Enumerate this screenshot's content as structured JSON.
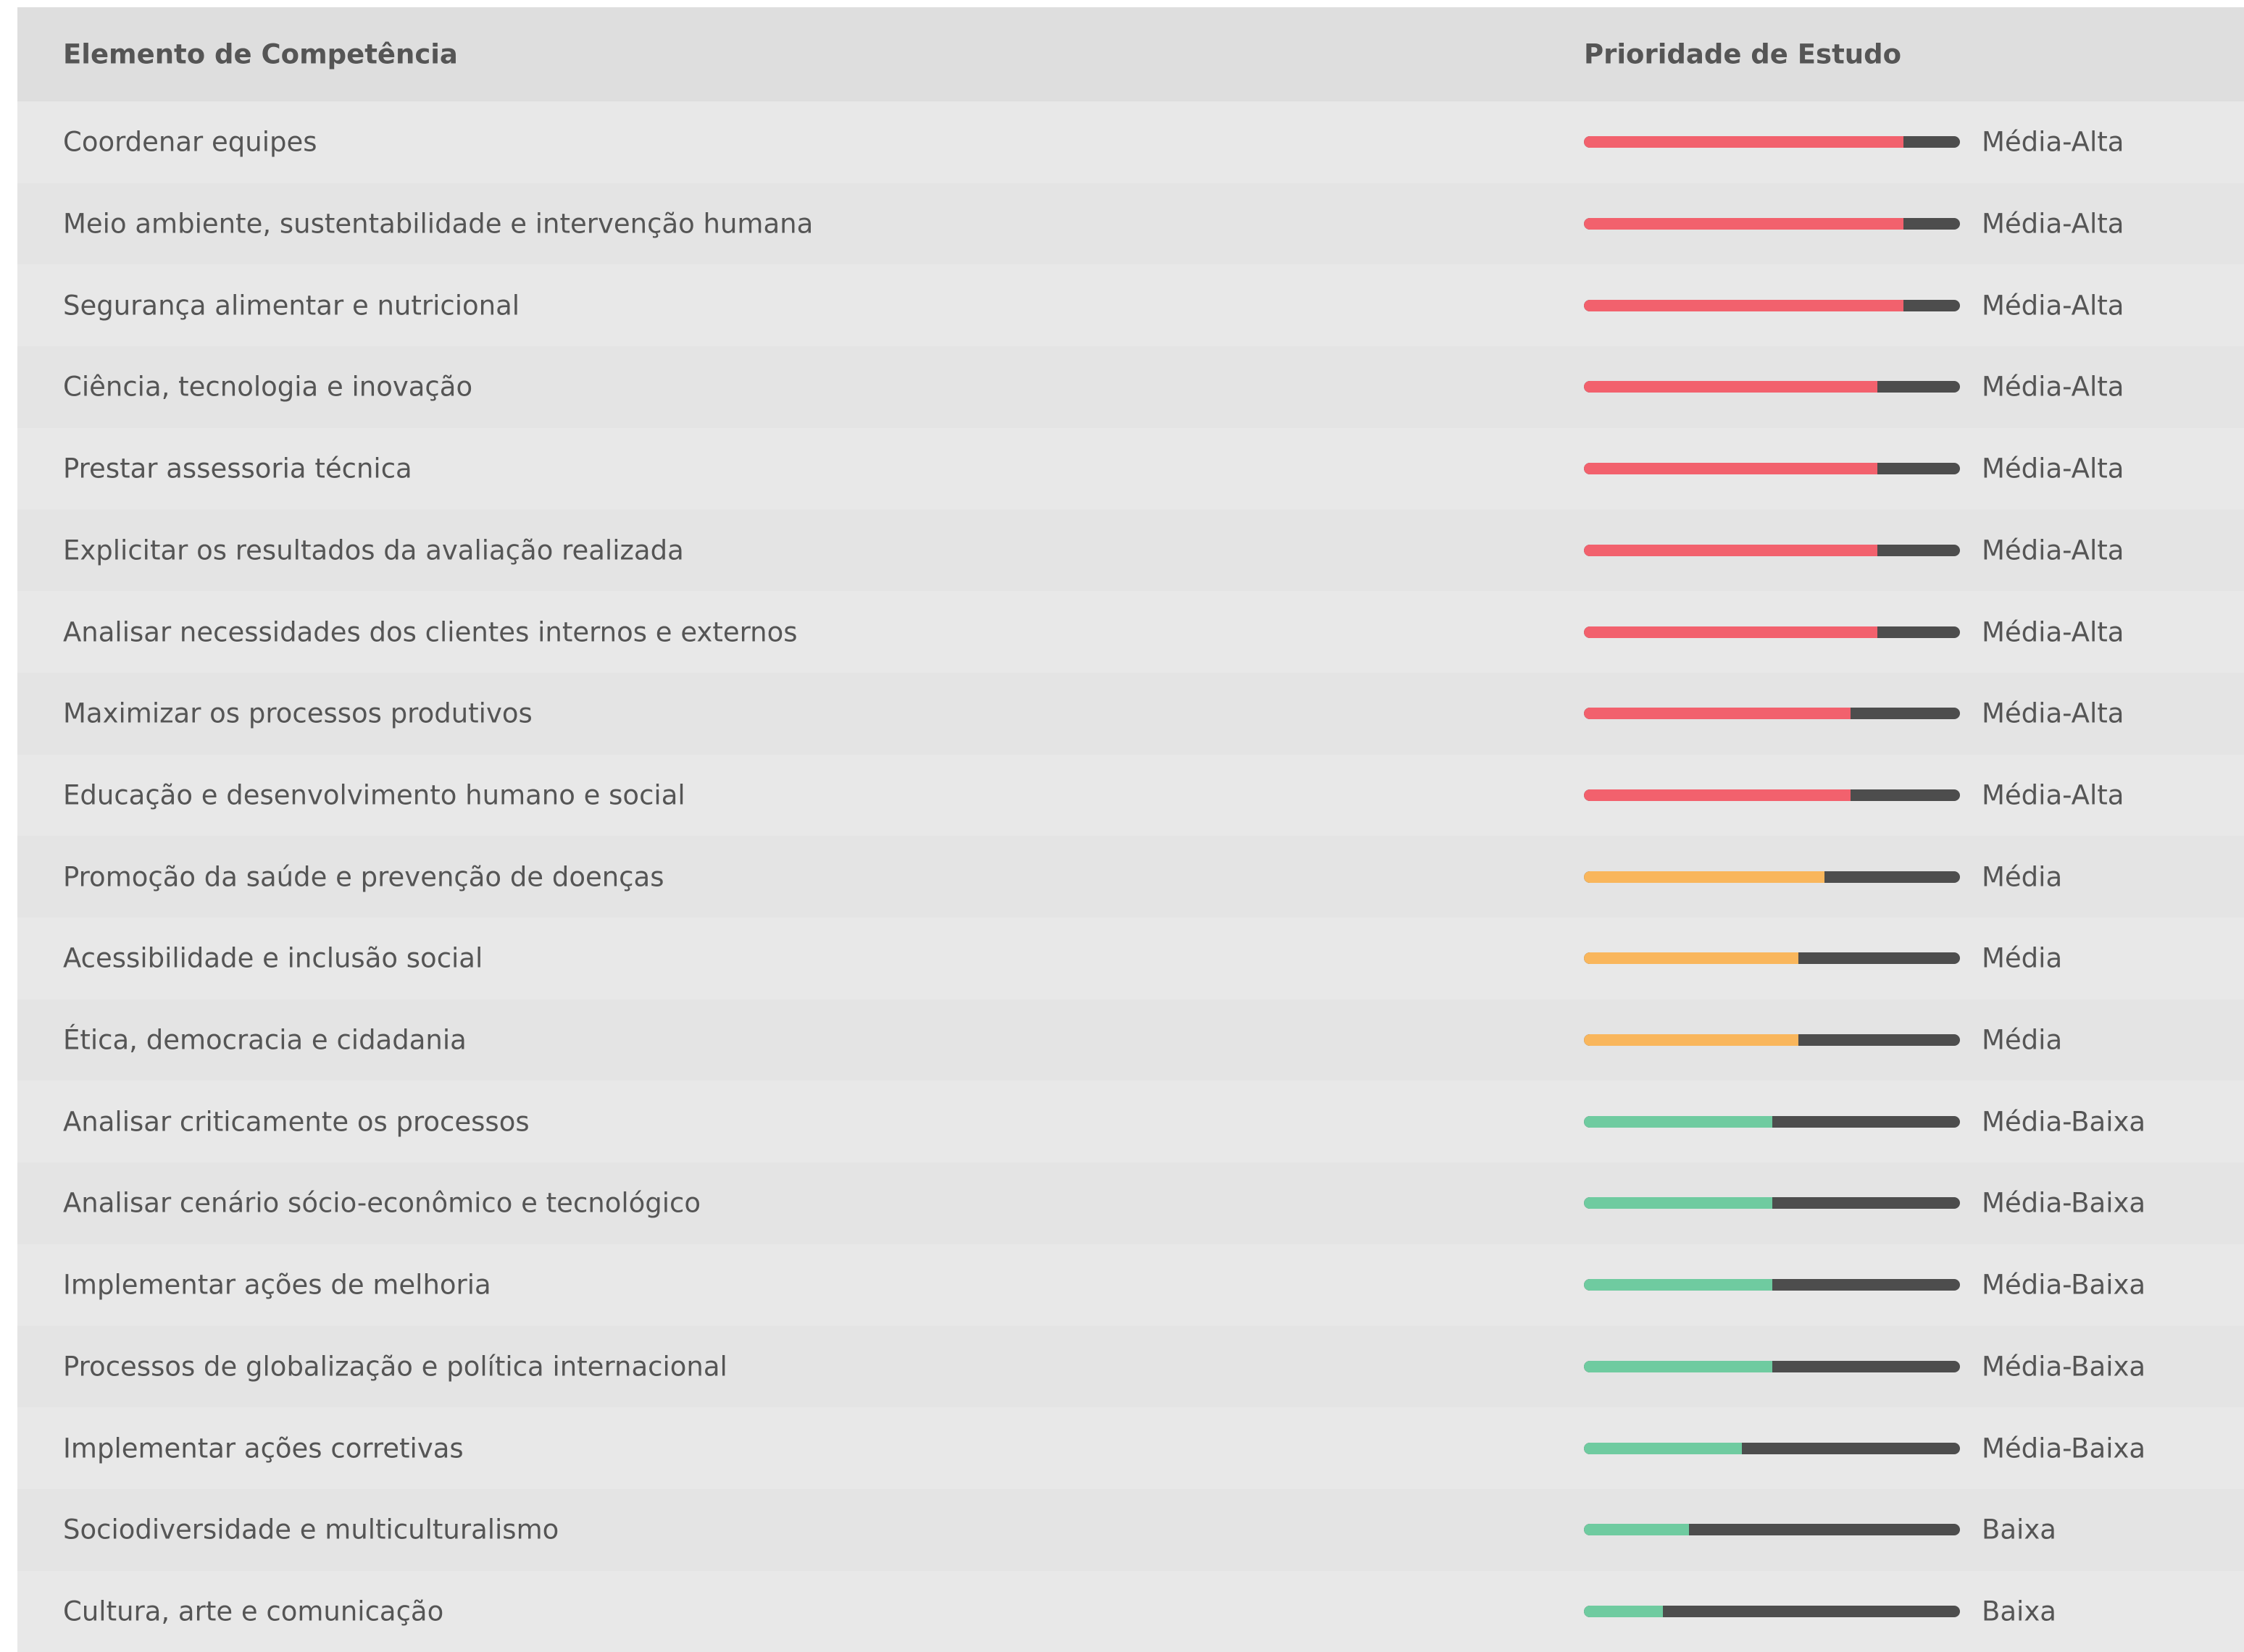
{
  "header": {
    "element": "Elemento de Competência",
    "priority": "Prioridade de Estudo"
  },
  "scale_max": 100,
  "rows": [
    {
      "element": "Coordenar equipes",
      "priority": "Média-Alta",
      "level": 85,
      "color": "#f2616d"
    },
    {
      "element": "Meio ambiente, sustentabilidade e intervenção humana",
      "priority": "Média-Alta",
      "level": 85,
      "color": "#f2616d"
    },
    {
      "element": "Segurança alimentar e nutricional",
      "priority": "Média-Alta",
      "level": 85,
      "color": "#f2616d"
    },
    {
      "element": "Ciência, tecnologia e inovação",
      "priority": "Média-Alta",
      "level": 78,
      "color": "#f2616d"
    },
    {
      "element": "Prestar assessoria técnica",
      "priority": "Média-Alta",
      "level": 78,
      "color": "#f2616d"
    },
    {
      "element": "Explicitar os resultados da avaliação realizada",
      "priority": "Média-Alta",
      "level": 78,
      "color": "#f2616d"
    },
    {
      "element": "Analisar necessidades dos clientes internos e externos",
      "priority": "Média-Alta",
      "level": 78,
      "color": "#f2616d"
    },
    {
      "element": "Maximizar os processos produtivos",
      "priority": "Média-Alta",
      "level": 71,
      "color": "#f2616d"
    },
    {
      "element": "Educação e desenvolvimento humano e social",
      "priority": "Média-Alta",
      "level": 71,
      "color": "#f2616d"
    },
    {
      "element": "Promoção da saúde e prevenção de doenças",
      "priority": "Média",
      "level": 64,
      "color": "#f9b65c"
    },
    {
      "element": "Acessibilidade e inclusão social",
      "priority": "Média",
      "level": 57,
      "color": "#f9b65c"
    },
    {
      "element": "Ética, democracia e cidadania",
      "priority": "Média",
      "level": 57,
      "color": "#f9b65c"
    },
    {
      "element": "Analisar criticamente os processos",
      "priority": "Média-Baixa",
      "level": 50,
      "color": "#6fcba0"
    },
    {
      "element": "Analisar cenário sócio-econômico e tecnológico",
      "priority": "Média-Baixa",
      "level": 50,
      "color": "#6fcba0"
    },
    {
      "element": "Implementar ações de melhoria",
      "priority": "Média-Baixa",
      "level": 50,
      "color": "#6fcba0"
    },
    {
      "element": "Processos de globalização e política internacional",
      "priority": "Média-Baixa",
      "level": 50,
      "color": "#6fcba0"
    },
    {
      "element": "Implementar ações corretivas",
      "priority": "Média-Baixa",
      "level": 42,
      "color": "#6fcba0"
    },
    {
      "element": "Sociodiversidade e multiculturalismo",
      "priority": "Baixa",
      "level": 28,
      "color": "#6fcba0"
    },
    {
      "element": "Cultura, arte e comunicação",
      "priority": "Baixa",
      "level": 21,
      "color": "#6fcba0"
    }
  ]
}
